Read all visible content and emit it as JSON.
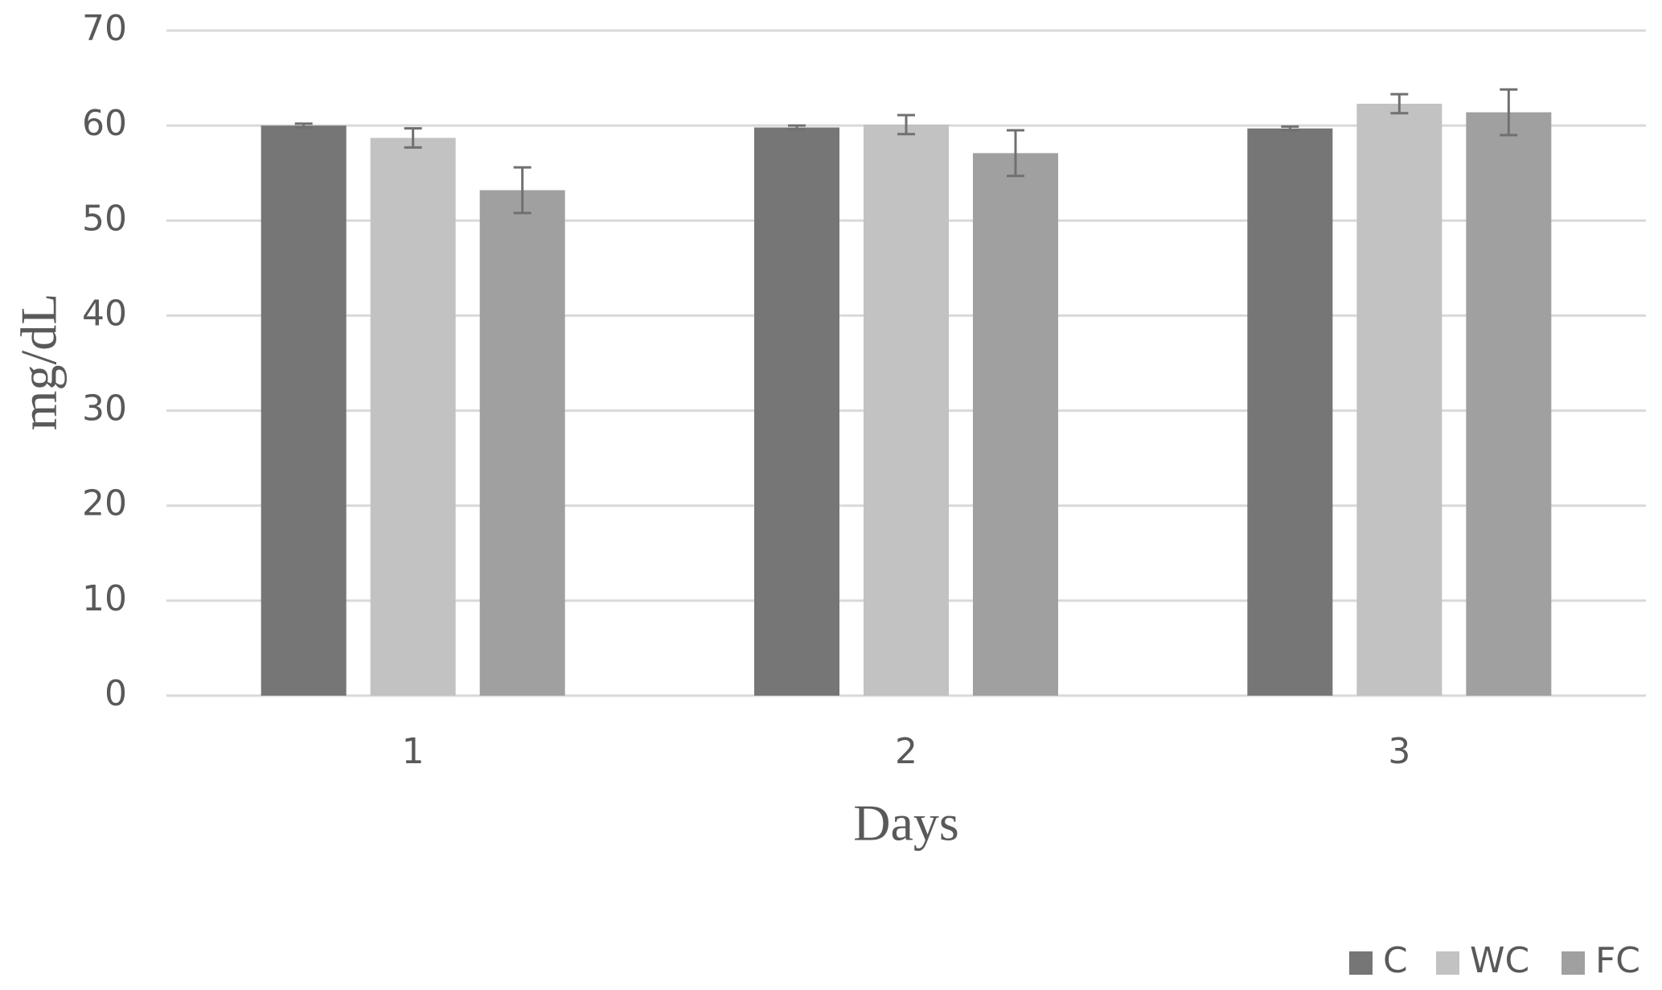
{
  "chart_data": {
    "type": "bar",
    "x_label": "Days",
    "y_label": "mg/dL",
    "categories": [
      "1",
      "2",
      "3"
    ],
    "series": [
      {
        "name": "C",
        "color": "#767676",
        "values": [
          60.0,
          59.8,
          59.7
        ],
        "errors": [
          0.2,
          0.2,
          0.2
        ]
      },
      {
        "name": "WC",
        "color": "#c2c2c2",
        "values": [
          58.7,
          60.1,
          62.3
        ],
        "errors": [
          1.0,
          1.0,
          1.0
        ]
      },
      {
        "name": "FC",
        "color": "#a0a0a0",
        "values": [
          53.2,
          57.1,
          61.4
        ],
        "errors": [
          2.4,
          2.4,
          2.4
        ]
      }
    ],
    "ylim": [
      0,
      70
    ],
    "yticks": [
      0,
      10,
      20,
      30,
      40,
      50,
      60,
      70
    ],
    "grid": true,
    "legend": "bottom-right"
  }
}
